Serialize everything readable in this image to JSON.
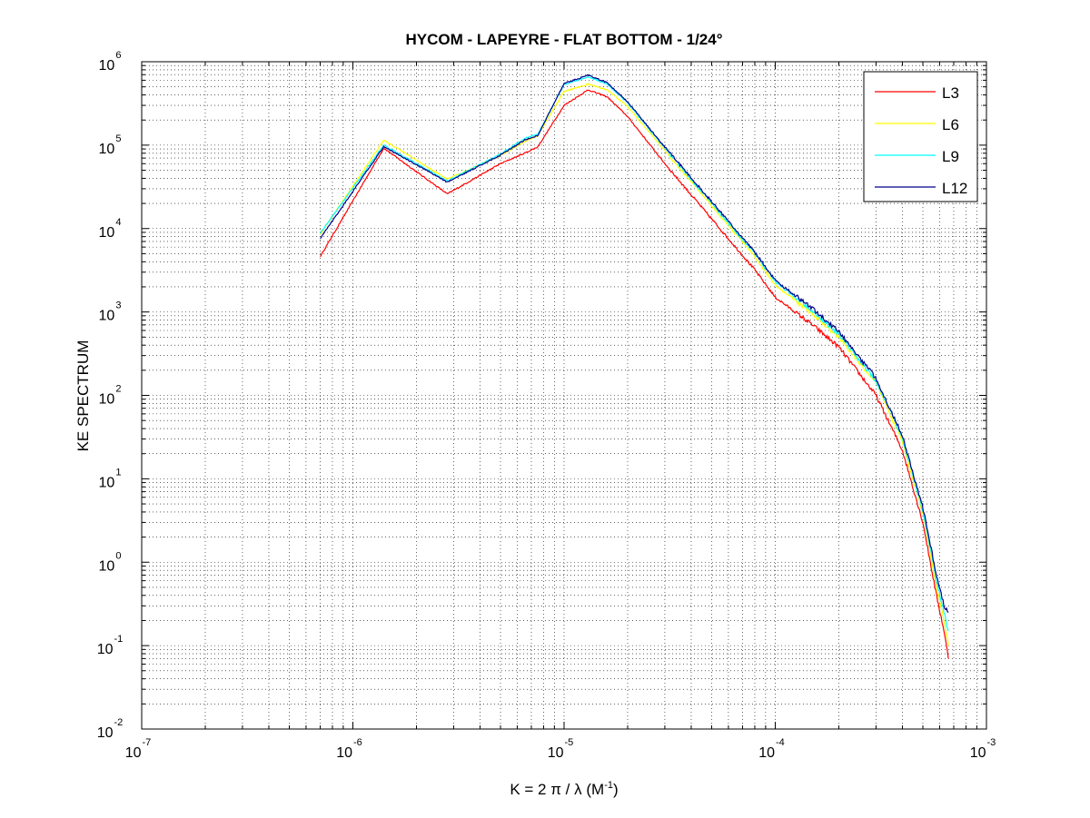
{
  "chart_data": {
    "type": "line",
    "title": "HYCOM - LAPEYRE - FLAT BOTTOM - 1/24°",
    "xlabel_main": "K = 2 π / λ  (M",
    "xlabel_sup": "-1",
    "xlabel_end": ")",
    "ylabel": "KE SPECTRUM",
    "xscale": "log",
    "yscale": "log",
    "xlim": [
      1e-07,
      0.001
    ],
    "ylim": [
      0.01,
      1000000.0
    ],
    "grid": true,
    "legend_position": "top-right",
    "x_ticks": [
      {
        "base": "10",
        "exp": "-7",
        "value": 1e-07
      },
      {
        "base": "10",
        "exp": "-6",
        "value": 1e-06
      },
      {
        "base": "10",
        "exp": "-5",
        "value": 1e-05
      },
      {
        "base": "10",
        "exp": "-4",
        "value": 0.0001
      },
      {
        "base": "10",
        "exp": "-3",
        "value": 0.001
      }
    ],
    "y_ticks": [
      {
        "base": "10",
        "exp": "-2",
        "value": 0.01
      },
      {
        "base": "10",
        "exp": "-1",
        "value": 0.1
      },
      {
        "base": "10",
        "exp": "0",
        "value": 1.0
      },
      {
        "base": "10",
        "exp": "1",
        "value": 10.0
      },
      {
        "base": "10",
        "exp": "2",
        "value": 100.0
      },
      {
        "base": "10",
        "exp": "3",
        "value": 1000.0
      },
      {
        "base": "10",
        "exp": "4",
        "value": 10000.0
      },
      {
        "base": "10",
        "exp": "5",
        "value": 100000.0
      },
      {
        "base": "10",
        "exp": "6",
        "value": 1000000.0
      }
    ],
    "series": [
      {
        "name": "L3",
        "color": "#ff0000",
        "x": [
          7e-07,
          1.4e-06,
          2.8e-06,
          5e-06,
          6.5e-06,
          7.5e-06,
          1e-05,
          1.3e-05,
          1.6e-05,
          2e-05,
          3e-05,
          5e-05,
          8e-05,
          0.0001,
          0.00015,
          0.0002,
          0.0003,
          0.0004,
          0.0005,
          0.00058,
          0.00063,
          0.00066
        ],
        "y": [
          4600.0,
          92000.0,
          26000.0,
          60000.0,
          80000.0,
          95000.0,
          300000.0,
          460000.0,
          380000.0,
          220000.0,
          60000.0,
          13000.0,
          3200.0,
          1500.0,
          700.0,
          380.0,
          100.0,
          22.0,
          3.0,
          0.4,
          0.15,
          0.07
        ]
      },
      {
        "name": "L6",
        "color": "#ffff00",
        "x": [
          7e-07,
          1.4e-06,
          2.8e-06,
          5e-06,
          6.5e-06,
          7.5e-06,
          1e-05,
          1.3e-05,
          1.6e-05,
          2e-05,
          3e-05,
          5e-05,
          8e-05,
          0.0001,
          0.00015,
          0.0002,
          0.0003,
          0.0004,
          0.0005,
          0.00058,
          0.00063,
          0.00066
        ],
        "y": [
          8500.0,
          115000.0,
          39000.0,
          75000.0,
          110000.0,
          130000.0,
          440000.0,
          540000.0,
          460000.0,
          290000.0,
          86000.0,
          19000.0,
          4600.0,
          2100.0,
          950.0,
          500.0,
          140.0,
          28.0,
          3.8,
          0.5,
          0.2,
          0.1
        ]
      },
      {
        "name": "L9",
        "color": "#00ffff",
        "x": [
          7e-07,
          1.4e-06,
          2.8e-06,
          5e-06,
          6.5e-06,
          7.5e-06,
          1e-05,
          1.3e-05,
          1.6e-05,
          2e-05,
          3e-05,
          5e-05,
          8e-05,
          0.0001,
          0.00015,
          0.0002,
          0.0003,
          0.0004,
          0.0005,
          0.00058,
          0.00063,
          0.00066
        ],
        "y": [
          8800.0,
          100000.0,
          37000.0,
          78000.0,
          120000.0,
          135000.0,
          530000.0,
          660000.0,
          540000.0,
          320000.0,
          92000.0,
          20000.0,
          5000.0,
          2300.0,
          1050.0,
          540.0,
          150.0,
          31.0,
          4.2,
          0.6,
          0.25,
          0.15
        ]
      },
      {
        "name": "L12",
        "color": "#00008b",
        "x": [
          7e-07,
          1.4e-06,
          2.8e-06,
          5e-06,
          6.5e-06,
          7.5e-06,
          1e-05,
          1.3e-05,
          1.6e-05,
          2e-05,
          3e-05,
          5e-05,
          8e-05,
          0.0001,
          0.00015,
          0.0002,
          0.0003,
          0.0004,
          0.0005,
          0.00058,
          0.00063,
          0.00066
        ],
        "y": [
          7600.0,
          96000.0,
          36000.0,
          76000.0,
          115000.0,
          130000.0,
          550000.0,
          690000.0,
          560000.0,
          330000.0,
          95000.0,
          21000.0,
          5200.0,
          2400.0,
          1100.0,
          580.0,
          160.0,
          33.0,
          4.5,
          0.7,
          0.3,
          0.25
        ]
      }
    ]
  }
}
